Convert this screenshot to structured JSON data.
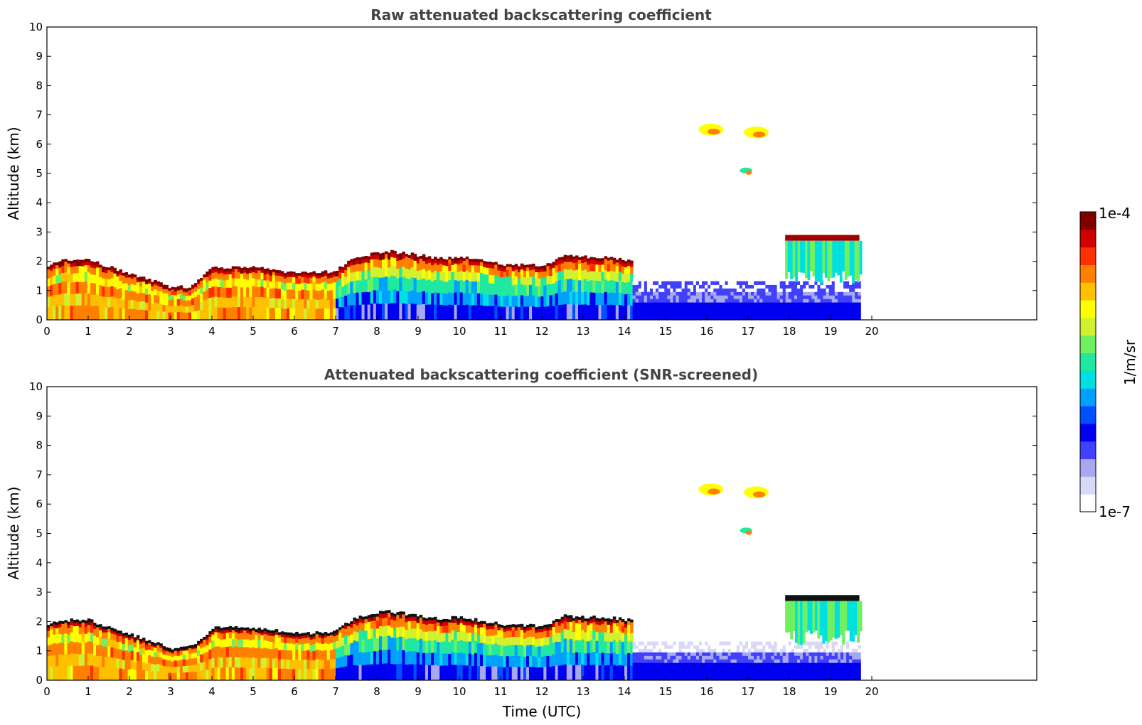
{
  "chart_data": [
    {
      "type": "heatmap",
      "title": "Raw attenuated backscattering coefficient",
      "xlabel": "",
      "ylabel": "Altitude (km)",
      "xlim": [
        0,
        24
      ],
      "ylim": [
        0,
        10
      ],
      "x_ticks": [
        "0",
        "1",
        "2",
        "3",
        "4",
        "5",
        "6",
        "7",
        "8",
        "9",
        "10",
        "11",
        "12",
        "13",
        "14",
        "15",
        "16",
        "17",
        "18",
        "19",
        "20"
      ],
      "y_ticks": [
        "0",
        "1",
        "2",
        "3",
        "4",
        "5",
        "6",
        "7",
        "8",
        "9",
        "10"
      ],
      "data_end_time": 19.7,
      "colorscale": "log",
      "value_range": [
        1e-07,
        0.0001
      ],
      "background_noise": true,
      "features": [
        {
          "kind": "aerosol_layer_top",
          "points": [
            [
              0,
              1.8
            ],
            [
              0.3,
              2.0
            ],
            [
              1,
              2.0
            ],
            [
              2,
              1.5
            ],
            [
              2.5,
              1.3
            ],
            [
              3,
              1.05
            ],
            [
              3.5,
              1.1
            ],
            [
              4,
              1.75
            ],
            [
              5,
              1.75
            ],
            [
              6,
              1.55
            ],
            [
              6.9,
              1.6
            ],
            [
              7.5,
              2.1
            ],
            [
              8.2,
              2.3
            ],
            [
              8.8,
              2.2
            ],
            [
              9.5,
              2.05
            ],
            [
              10,
              2.1
            ],
            [
              11,
              1.85
            ],
            [
              12,
              1.8
            ],
            [
              12.5,
              2.15
            ],
            [
              13,
              2.1
            ],
            [
              13.5,
              2.1
            ],
            [
              14.1,
              2.0
            ]
          ]
        },
        {
          "kind": "cloud",
          "time": [
            15.8,
            16.4
          ],
          "altitude": [
            6.3,
            6.7
          ]
        },
        {
          "kind": "cloud",
          "time": [
            16.9,
            17.5
          ],
          "altitude": [
            6.2,
            6.6
          ]
        },
        {
          "kind": "cloud",
          "time": [
            16.8,
            17.1
          ],
          "altitude": [
            5.0,
            5.2
          ]
        },
        {
          "kind": "cloud",
          "time": [
            17.9,
            19.7
          ],
          "altitude": [
            2.7,
            2.9
          ]
        }
      ]
    },
    {
      "type": "heatmap",
      "title": "Attenuated backscattering coefficient (SNR-screened)",
      "xlabel": "Time (UTC)",
      "ylabel": "Altitude (km)",
      "xlim": [
        0,
        24
      ],
      "ylim": [
        0,
        10
      ],
      "x_ticks": [
        "0",
        "1",
        "2",
        "3",
        "4",
        "5",
        "6",
        "7",
        "8",
        "9",
        "10",
        "11",
        "12",
        "13",
        "14",
        "15",
        "16",
        "17",
        "18",
        "19",
        "20"
      ],
      "y_ticks": [
        "0",
        "1",
        "2",
        "3",
        "4",
        "5",
        "6",
        "7",
        "8",
        "9",
        "10"
      ],
      "data_end_time": 19.7,
      "colorscale": "log",
      "value_range": [
        1e-07,
        0.0001
      ],
      "background_noise": false,
      "features": [
        {
          "kind": "aerosol_layer_top",
          "points": [
            [
              0,
              1.8
            ],
            [
              0.3,
              2.0
            ],
            [
              1,
              2.0
            ],
            [
              2,
              1.5
            ],
            [
              2.5,
              1.3
            ],
            [
              3,
              1.05
            ],
            [
              3.5,
              1.1
            ],
            [
              4,
              1.75
            ],
            [
              5,
              1.75
            ],
            [
              6,
              1.55
            ],
            [
              6.9,
              1.6
            ],
            [
              7.5,
              2.1
            ],
            [
              8.2,
              2.3
            ],
            [
              8.8,
              2.2
            ],
            [
              9.5,
              2.05
            ],
            [
              10,
              2.1
            ],
            [
              11,
              1.85
            ],
            [
              12,
              1.8
            ],
            [
              12.5,
              2.15
            ],
            [
              13,
              2.1
            ],
            [
              13.5,
              2.1
            ],
            [
              14.1,
              2.0
            ]
          ]
        },
        {
          "kind": "cloud",
          "time": [
            15.8,
            16.4
          ],
          "altitude": [
            6.3,
            6.7
          ]
        },
        {
          "kind": "cloud",
          "time": [
            16.9,
            17.5
          ],
          "altitude": [
            6.2,
            6.6
          ]
        },
        {
          "kind": "cloud",
          "time": [
            16.8,
            17.1
          ],
          "altitude": [
            5.0,
            5.2
          ]
        },
        {
          "kind": "cloud",
          "time": [
            17.9,
            19.7
          ],
          "altitude": [
            2.7,
            2.9
          ]
        }
      ]
    }
  ],
  "colorbar": {
    "label": "1/m/sr",
    "max_label": "1e-4",
    "min_label": "1e-7",
    "colors": [
      "#ffffff",
      "#d8d8f8",
      "#a8a8f0",
      "#4040ff",
      "#0000f0",
      "#0050ff",
      "#00a0ff",
      "#00e0e0",
      "#20e8a0",
      "#70f060",
      "#d0f030",
      "#ffff00",
      "#ffc000",
      "#ff8000",
      "#ff3000",
      "#d00000",
      "#800000"
    ]
  }
}
